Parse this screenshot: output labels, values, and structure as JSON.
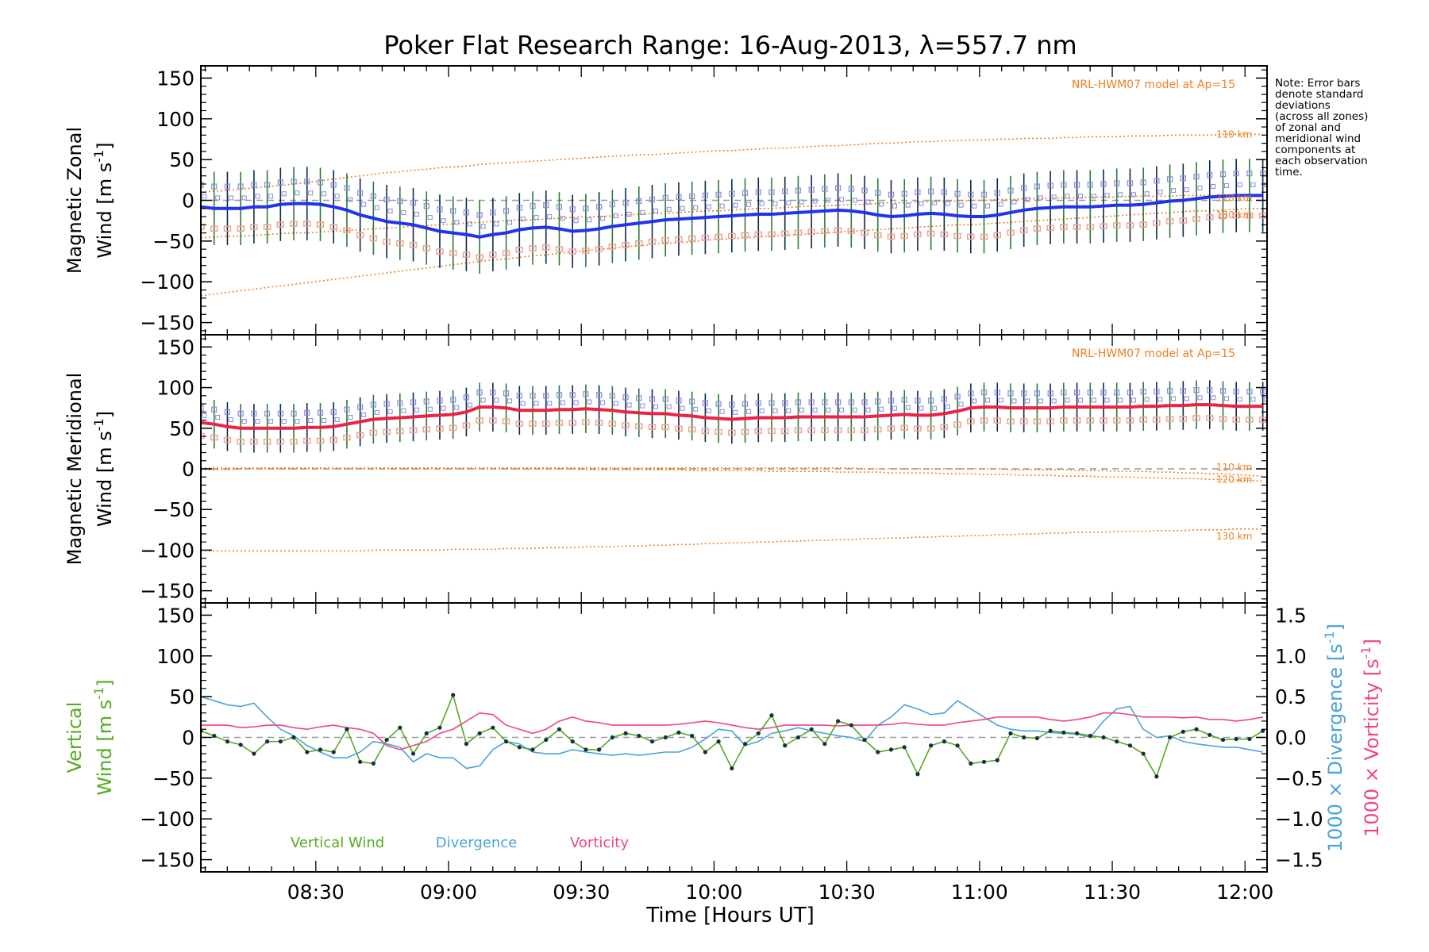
{
  "title": "Poker Flat Research Range: 16-Aug-2013, λ=557.7 nm",
  "note": "Note: Error bars\ndenote standard\ndeviations\n(across all zones)\nof zonal and\nmeridional wind\ncomponents at\neach observation\ntime.",
  "xlabel": "Time [Hours UT]",
  "xticks": [
    "08:30",
    "09:00",
    "09:30",
    "10:00",
    "10:30",
    "11:00",
    "11:30",
    "12:00"
  ],
  "xlim": [
    8.067,
    12.083
  ],
  "colors": {
    "zonal": "#2233ee",
    "meridional": "#ee2244",
    "vertical": "#55aa22",
    "divergence": "#4aa3d8",
    "vorticity": "#ee4488",
    "model": "#f08020",
    "errorbar_dark": "#0a2a4a",
    "errorbar_green": "#2a7a3a",
    "zone_blue": "#8a8ae0",
    "zone_salmon": "#f4a090"
  },
  "chart_data": [
    {
      "type": "line",
      "name": "zonal",
      "ylabel_line1": "Magnetic Zonal",
      "ylabel_line2": "Wind [m s",
      "ylabel_sup": "-1",
      "ylabel_close": "]",
      "ylim": [
        -165,
        165
      ],
      "yticks": [
        "150",
        "100",
        "50",
        "0",
        "−50",
        "−100",
        "−150"
      ],
      "model_label": "NRL-HWM07 model at Ap=15",
      "model_alt_labels": [
        "110 km",
        "120 km",
        "130 km"
      ],
      "x": [
        8.067,
        8.117,
        8.167,
        8.217,
        8.267,
        8.317,
        8.367,
        8.417,
        8.467,
        8.517,
        8.567,
        8.617,
        8.667,
        8.717,
        8.767,
        8.817,
        8.867,
        8.917,
        8.967,
        9.017,
        9.067,
        9.117,
        9.167,
        9.217,
        9.267,
        9.317,
        9.367,
        9.417,
        9.467,
        9.517,
        9.567,
        9.617,
        9.667,
        9.717,
        9.767,
        9.817,
        9.867,
        9.917,
        9.967,
        10.017,
        10.067,
        10.117,
        10.167,
        10.217,
        10.267,
        10.317,
        10.367,
        10.417,
        10.467,
        10.517,
        10.567,
        10.617,
        10.667,
        10.717,
        10.767,
        10.817,
        10.867,
        10.917,
        10.967,
        11.017,
        11.067,
        11.117,
        11.167,
        11.217,
        11.267,
        11.317,
        11.367,
        11.417,
        11.467,
        11.517,
        11.567,
        11.617,
        11.667,
        11.717,
        11.767,
        11.817,
        11.867,
        11.917,
        11.967,
        12.017,
        12.067
      ],
      "values": [
        -8,
        -10,
        -10,
        -10,
        -8,
        -8,
        -5,
        -4,
        -4,
        -5,
        -8,
        -12,
        -18,
        -22,
        -26,
        -28,
        -30,
        -34,
        -38,
        -40,
        -42,
        -45,
        -42,
        -40,
        -36,
        -34,
        -33,
        -35,
        -38,
        -37,
        -35,
        -32,
        -30,
        -28,
        -26,
        -24,
        -23,
        -22,
        -21,
        -20,
        -19,
        -18,
        -17,
        -17,
        -16,
        -15,
        -14,
        -13,
        -12,
        -13,
        -15,
        -18,
        -20,
        -19,
        -17,
        -16,
        -17,
        -19,
        -20,
        -20,
        -18,
        -15,
        -12,
        -10,
        -9,
        -8,
        -8,
        -8,
        -7,
        -6,
        -6,
        -5,
        -3,
        -1,
        0,
        2,
        4,
        5,
        6,
        6,
        6
      ],
      "std": 45,
      "model_110": [
        10,
        11,
        12,
        14,
        15,
        17,
        18,
        20,
        22,
        24,
        26,
        28,
        30,
        32,
        34,
        35,
        37,
        38,
        40,
        41,
        42,
        44,
        45,
        46,
        47,
        48,
        49,
        50,
        51,
        52,
        53,
        54,
        55,
        56,
        56,
        57,
        58,
        59,
        60,
        61,
        61,
        62,
        63,
        64,
        64,
        65,
        66,
        67,
        67,
        68,
        69,
        70,
        70,
        71,
        72,
        72,
        73,
        73,
        74,
        74,
        75,
        75,
        76,
        76,
        76,
        77,
        77,
        78,
        78,
        78,
        79,
        79,
        79,
        80,
        80,
        80,
        80,
        81,
        81,
        81,
        81
      ],
      "model_120": [
        -46,
        -45,
        -44,
        -44,
        -43,
        -42,
        -41,
        -40,
        -40,
        -39,
        -38,
        -37,
        -36,
        -35,
        -34,
        -33,
        -32,
        -31,
        -30,
        -29,
        -28,
        -27,
        -26,
        -25,
        -24,
        -24,
        -23,
        -22,
        -21,
        -20,
        -20,
        -19,
        -18,
        -17,
        -16,
        -16,
        -15,
        -14,
        -13,
        -13,
        -12,
        -11,
        -10,
        -10,
        -9,
        -8,
        -7,
        -7,
        -6,
        -5,
        -5,
        -4,
        -3,
        -3,
        -2,
        -2,
        -1,
        -1,
        0,
        0,
        1,
        1,
        2,
        2,
        3,
        3,
        3,
        4,
        4,
        4,
        5,
        5,
        5,
        5,
        6,
        6,
        6,
        6,
        6,
        6,
        6
      ],
      "model_130": [
        -117,
        -115,
        -113,
        -111,
        -109,
        -107,
        -105,
        -103,
        -101,
        -99,
        -97,
        -95,
        -93,
        -91,
        -89,
        -87,
        -85,
        -83,
        -81,
        -79,
        -77,
        -75,
        -73,
        -72,
        -70,
        -68,
        -67,
        -65,
        -63,
        -62,
        -60,
        -59,
        -57,
        -56,
        -54,
        -53,
        -52,
        -51,
        -49,
        -48,
        -47,
        -46,
        -45,
        -44,
        -43,
        -42,
        -41,
        -40,
        -39,
        -38,
        -37,
        -36,
        -35,
        -34,
        -33,
        -32,
        -31,
        -30,
        -30,
        -29,
        -28,
        -27,
        -26,
        -25,
        -24,
        -23,
        -22,
        -21,
        -20,
        -19,
        -18,
        -17,
        -16,
        -15,
        -14,
        -13,
        -13,
        -12,
        -11,
        -10,
        -10
      ]
    },
    {
      "type": "line",
      "name": "meridional",
      "ylabel_line1": "Magnetic Meridional",
      "ylabel_line2": "Wind [m s",
      "ylabel_sup": "-1",
      "ylabel_close": "]",
      "ylim": [
        -165,
        165
      ],
      "yticks": [
        "150",
        "100",
        "50",
        "0",
        "−50",
        "−100",
        "−150"
      ],
      "model_label": "NRL-HWM07 model at Ap=15",
      "model_alt_labels": [
        "110 km",
        "120 km",
        "130 km"
      ],
      "x": [
        8.067,
        8.117,
        8.167,
        8.217,
        8.267,
        8.317,
        8.367,
        8.417,
        8.467,
        8.517,
        8.567,
        8.617,
        8.667,
        8.717,
        8.767,
        8.817,
        8.867,
        8.917,
        8.967,
        9.017,
        9.067,
        9.117,
        9.167,
        9.217,
        9.267,
        9.317,
        9.367,
        9.417,
        9.467,
        9.517,
        9.567,
        9.617,
        9.667,
        9.717,
        9.767,
        9.817,
        9.867,
        9.917,
        9.967,
        10.017,
        10.067,
        10.117,
        10.167,
        10.217,
        10.267,
        10.317,
        10.367,
        10.417,
        10.467,
        10.517,
        10.567,
        10.617,
        10.667,
        10.717,
        10.767,
        10.817,
        10.867,
        10.917,
        10.967,
        11.017,
        11.067,
        11.117,
        11.167,
        11.217,
        11.267,
        11.317,
        11.367,
        11.417,
        11.467,
        11.517,
        11.567,
        11.617,
        11.667,
        11.717,
        11.767,
        11.817,
        11.867,
        11.917,
        11.967,
        12.017,
        12.067
      ],
      "values": [
        57,
        55,
        52,
        50,
        50,
        50,
        50,
        50,
        51,
        51,
        52,
        55,
        58,
        61,
        62,
        63,
        64,
        65,
        66,
        67,
        70,
        76,
        76,
        75,
        72,
        72,
        72,
        73,
        73,
        74,
        73,
        72,
        70,
        69,
        68,
        68,
        66,
        65,
        63,
        62,
        61,
        62,
        63,
        63,
        63,
        64,
        64,
        64,
        64,
        64,
        64,
        65,
        66,
        67,
        66,
        66,
        68,
        71,
        75,
        76,
        76,
        75,
        75,
        75,
        75,
        76,
        76,
        76,
        76,
        76,
        76,
        77,
        77,
        78,
        78,
        79,
        79,
        78,
        77,
        77,
        77
      ],
      "std": 30,
      "model_110": [
        1,
        1,
        1,
        1,
        1,
        1,
        1,
        1,
        1,
        1,
        1,
        1,
        1,
        1,
        1,
        1,
        1,
        1,
        1,
        1,
        1,
        1,
        1,
        1,
        1,
        1,
        1,
        1,
        1,
        1,
        1,
        1,
        1,
        1,
        1,
        1,
        1,
        1,
        1,
        1,
        1,
        1,
        1,
        1,
        1,
        1,
        1,
        1,
        1,
        1,
        0,
        0,
        0,
        0,
        0,
        0,
        0,
        0,
        0,
        0,
        0,
        -1,
        -1,
        -1,
        -1,
        -1,
        -2,
        -2,
        -2,
        -3,
        -3,
        -3,
        -4,
        -4,
        -5,
        -5,
        -6,
        -6,
        -7,
        -8,
        -9
      ],
      "model_120": [
        -1,
        -1,
        -1,
        0,
        0,
        0,
        0,
        0,
        0,
        0,
        0,
        0,
        0,
        0,
        0,
        0,
        0,
        0,
        0,
        0,
        0,
        0,
        0,
        0,
        0,
        0,
        0,
        0,
        0,
        -1,
        -1,
        -1,
        -1,
        -1,
        -1,
        -1,
        -1,
        -2,
        -2,
        -2,
        -2,
        -2,
        -2,
        -3,
        -3,
        -3,
        -3,
        -3,
        -4,
        -4,
        -4,
        -4,
        -5,
        -5,
        -5,
        -5,
        -6,
        -6,
        -6,
        -7,
        -7,
        -7,
        -8,
        -8,
        -8,
        -9,
        -9,
        -9,
        -10,
        -10,
        -10,
        -11,
        -11,
        -12,
        -12,
        -12,
        -13,
        -13,
        -14,
        -14,
        -15
      ],
      "model_130": [
        -101,
        -101,
        -101,
        -101,
        -101,
        -101,
        -101,
        -101,
        -101,
        -101,
        -101,
        -101,
        -101,
        -100,
        -100,
        -100,
        -100,
        -100,
        -100,
        -99,
        -99,
        -99,
        -99,
        -98,
        -98,
        -98,
        -97,
        -97,
        -97,
        -96,
        -96,
        -96,
        -95,
        -95,
        -94,
        -94,
        -93,
        -93,
        -92,
        -92,
        -91,
        -91,
        -90,
        -90,
        -89,
        -89,
        -88,
        -88,
        -87,
        -87,
        -86,
        -86,
        -85,
        -85,
        -84,
        -84,
        -83,
        -83,
        -82,
        -82,
        -81,
        -81,
        -80,
        -80,
        -79,
        -79,
        -78,
        -78,
        -78,
        -77,
        -77,
        -77,
        -76,
        -76,
        -76,
        -75,
        -75,
        -75,
        -74,
        -74,
        -74
      ]
    },
    {
      "type": "line",
      "name": "vertical",
      "ylabel_line1": "Vertical",
      "ylabel_line2": "Wind [m s",
      "ylabel_sup": "-1",
      "ylabel_close": "]",
      "ylim": [
        -165,
        165
      ],
      "yticks": [
        "150",
        "100",
        "50",
        "0",
        "−50",
        "−100",
        "−150"
      ],
      "y2lim": [
        -1.65,
        1.65
      ],
      "y2ticks": [
        "1.5",
        "1.0",
        "0.5",
        "0.0",
        "−0.5",
        "−1.0",
        "−1.5"
      ],
      "y2label_div": "1000 × Divergence [s",
      "y2label_vor": "1000 × Vorticity [s",
      "y2label_sup": "-1",
      "y2label_close": "]",
      "legend": [
        "Vertical Wind",
        "Divergence",
        "Vorticity"
      ],
      "x": [
        8.067,
        8.117,
        8.167,
        8.217,
        8.267,
        8.317,
        8.367,
        8.417,
        8.467,
        8.517,
        8.567,
        8.617,
        8.667,
        8.717,
        8.767,
        8.817,
        8.867,
        8.917,
        8.967,
        9.017,
        9.067,
        9.117,
        9.167,
        9.217,
        9.267,
        9.317,
        9.367,
        9.417,
        9.467,
        9.517,
        9.567,
        9.617,
        9.667,
        9.717,
        9.767,
        9.817,
        9.867,
        9.917,
        9.967,
        10.017,
        10.067,
        10.117,
        10.167,
        10.217,
        10.267,
        10.317,
        10.367,
        10.417,
        10.467,
        10.517,
        10.567,
        10.617,
        10.667,
        10.717,
        10.767,
        10.817,
        10.867,
        10.917,
        10.967,
        11.017,
        11.067,
        11.117,
        11.167,
        11.217,
        11.267,
        11.317,
        11.367,
        11.417,
        11.467,
        11.517,
        11.567,
        11.617,
        11.667,
        11.717,
        11.767,
        11.817,
        11.867,
        11.917,
        11.967,
        12.017,
        12.067
      ],
      "vertical": [
        8,
        2,
        -5,
        -9,
        -20,
        -5,
        -5,
        0,
        -18,
        -15,
        -18,
        10,
        -30,
        -32,
        -3,
        12,
        -20,
        5,
        12,
        52,
        -8,
        5,
        12,
        -5,
        -12,
        -15,
        -3,
        10,
        -5,
        -15,
        -15,
        0,
        5,
        2,
        -5,
        0,
        6,
        2,
        -18,
        -5,
        -38,
        -8,
        5,
        27,
        -10,
        0,
        10,
        -8,
        20,
        15,
        -3,
        -18,
        -15,
        -12,
        -45,
        -10,
        -5,
        -10,
        -32,
        -30,
        -28,
        5,
        0,
        -1,
        8,
        6,
        5,
        2,
        0,
        -5,
        -10,
        -20,
        -48,
        0,
        7,
        10,
        3,
        -3,
        -2,
        -2,
        8
      ],
      "divergence": [
        0.5,
        0.45,
        0.4,
        0.38,
        0.42,
        0.25,
        0.1,
        0.02,
        -0.1,
        -0.18,
        -0.25,
        -0.25,
        -0.18,
        -0.05,
        -0.08,
        -0.12,
        -0.3,
        -0.2,
        -0.25,
        -0.25,
        -0.38,
        -0.35,
        -0.15,
        -0.05,
        -0.08,
        -0.18,
        -0.2,
        -0.2,
        -0.15,
        -0.18,
        -0.2,
        -0.22,
        -0.2,
        -0.22,
        -0.2,
        -0.18,
        -0.18,
        -0.12,
        -0.02,
        0.1,
        0.08,
        -0.1,
        -0.05,
        0.05,
        0.08,
        0.12,
        0.08,
        0.05,
        0.02,
        0.0,
        -0.05,
        0.15,
        0.25,
        0.4,
        0.35,
        0.28,
        0.3,
        0.45,
        0.35,
        0.25,
        0.15,
        0.1,
        0.08,
        0.08,
        0.06,
        0.05,
        0.04,
        0.0,
        0.2,
        0.35,
        0.38,
        0.1,
        0.0,
        0.02,
        -0.05,
        -0.08,
        -0.1,
        -0.12,
        -0.12,
        -0.15,
        -0.18
      ],
      "vorticity": [
        0.15,
        0.15,
        0.15,
        0.12,
        0.13,
        0.15,
        0.15,
        0.12,
        0.1,
        0.13,
        0.15,
        0.12,
        0.1,
        0.05,
        -0.1,
        -0.15,
        -0.1,
        -0.05,
        0.05,
        0.1,
        0.2,
        0.3,
        0.28,
        0.15,
        0.1,
        0.05,
        0.1,
        0.2,
        0.25,
        0.2,
        0.18,
        0.15,
        0.15,
        0.15,
        0.15,
        0.15,
        0.16,
        0.18,
        0.2,
        0.18,
        0.15,
        0.12,
        0.1,
        0.12,
        0.15,
        0.15,
        0.15,
        0.15,
        0.14,
        0.15,
        0.15,
        0.15,
        0.16,
        0.18,
        0.16,
        0.15,
        0.15,
        0.18,
        0.2,
        0.22,
        0.25,
        0.25,
        0.25,
        0.25,
        0.22,
        0.2,
        0.22,
        0.25,
        0.3,
        0.3,
        0.28,
        0.25,
        0.25,
        0.25,
        0.24,
        0.25,
        0.22,
        0.22,
        0.2,
        0.22,
        0.25
      ]
    }
  ]
}
